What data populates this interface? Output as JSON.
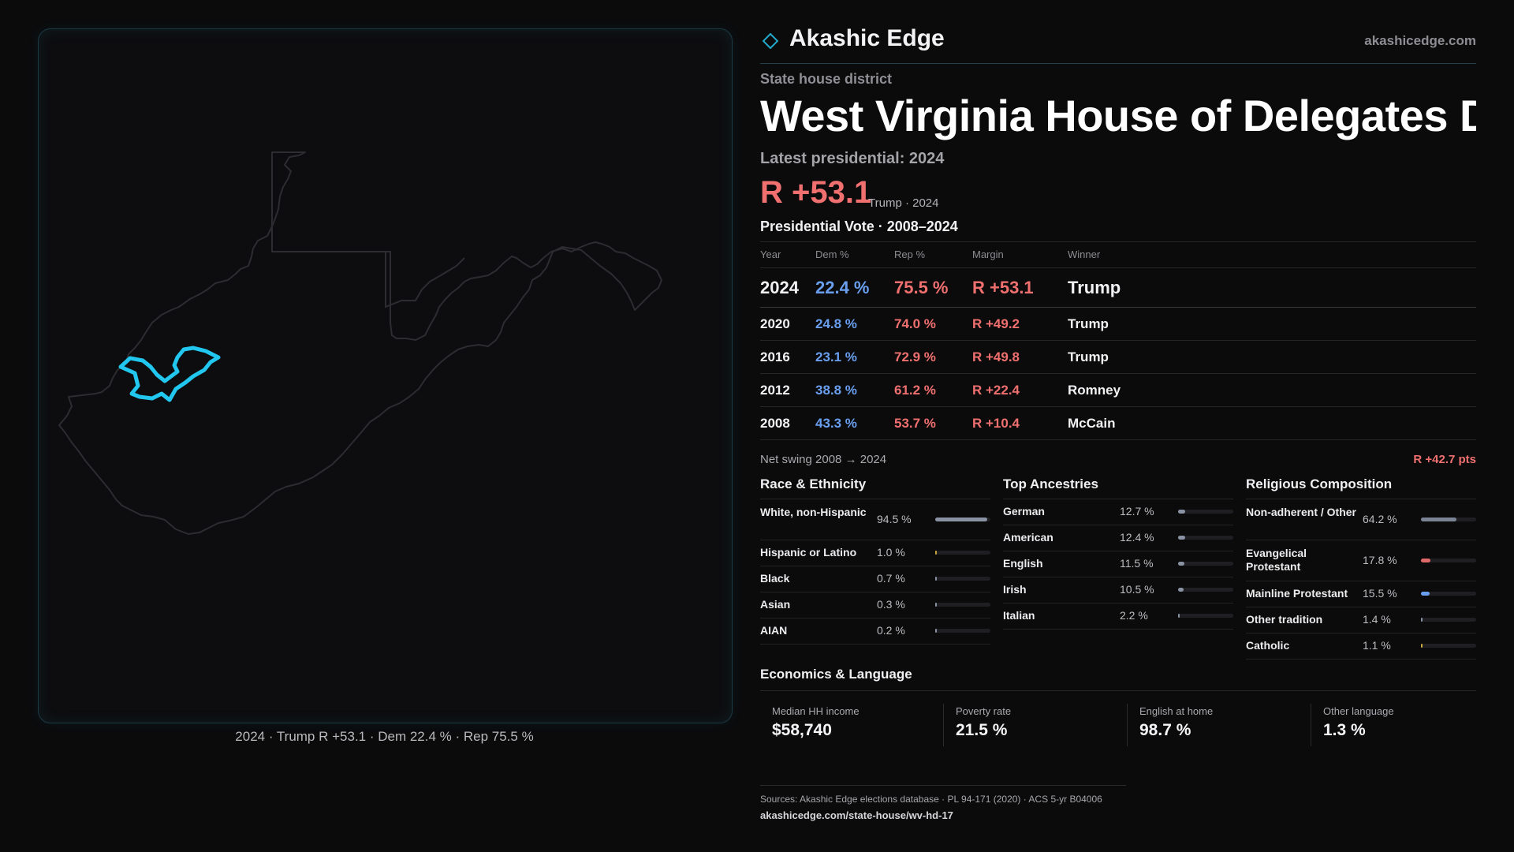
{
  "map": {
    "caption": "2024 · Trump R +53.1 · Dem 22.4 % · Rep 75.5 %"
  },
  "brand": {
    "icon": "diamond-icon",
    "name": "Akashic Edge",
    "url": "akashicedge.com"
  },
  "header": {
    "kicker": "State house district",
    "title": "West Virginia House of Delegates Distr",
    "latest_label": "Latest presidential: 2024",
    "margin": "R +53.1",
    "margin_sub": "Trump · 2024"
  },
  "vote_history": {
    "title": "Presidential Vote · 2008–2024",
    "columns": [
      "Year",
      "Dem %",
      "Rep %",
      "Margin",
      "Winner"
    ],
    "rows": [
      {
        "year": "2024",
        "dem": "22.4 %",
        "rep": "75.5 %",
        "margin": "R +53.1",
        "winner": "Trump"
      },
      {
        "year": "2020",
        "dem": "24.8 %",
        "rep": "74.0 %",
        "margin": "R +49.2",
        "winner": "Trump"
      },
      {
        "year": "2016",
        "dem": "23.1 %",
        "rep": "72.9 %",
        "margin": "R +49.8",
        "winner": "Trump"
      },
      {
        "year": "2012",
        "dem": "38.8 %",
        "rep": "61.2 %",
        "margin": "R +22.4",
        "winner": "Romney"
      },
      {
        "year": "2008",
        "dem": "43.3 %",
        "rep": "53.7 %",
        "margin": "R +10.4",
        "winner": "McCain"
      }
    ],
    "swing_label": "Net swing 2008 → 2024",
    "swing_value": "R +42.7 pts"
  },
  "race": {
    "title": "Race & Ethnicity",
    "items": [
      {
        "label": "White, non-Hispanic",
        "value": "94.5 %",
        "fraction": 0.945,
        "color": "#8a93a3"
      },
      {
        "label": "Hispanic or Latino",
        "value": "1.0 %",
        "fraction": 0.01,
        "color": "#c9a63a"
      },
      {
        "label": "Black",
        "value": "0.7 %",
        "fraction": 0.007,
        "color": "#8a93a3"
      },
      {
        "label": "Asian",
        "value": "0.3 %",
        "fraction": 0.003,
        "color": "#8a93a3"
      },
      {
        "label": "AIAN",
        "value": "0.2 %",
        "fraction": 0.002,
        "color": "#8a93a3"
      }
    ]
  },
  "ancestry": {
    "title": "Top Ancestries",
    "items": [
      {
        "label": "German",
        "value": "12.7 %",
        "fraction": 0.127,
        "color": "#8a93a3"
      },
      {
        "label": "American",
        "value": "12.4 %",
        "fraction": 0.124,
        "color": "#8a93a3"
      },
      {
        "label": "English",
        "value": "11.5 %",
        "fraction": 0.115,
        "color": "#8a93a3"
      },
      {
        "label": "Irish",
        "value": "10.5 %",
        "fraction": 0.105,
        "color": "#8a93a3"
      },
      {
        "label": "Italian",
        "value": "2.2 %",
        "fraction": 0.022,
        "color": "#8a93a3"
      }
    ]
  },
  "religion": {
    "title": "Religious Composition",
    "items": [
      {
        "label": "Non-adherent / Other",
        "value": "64.2 %",
        "fraction": 0.642,
        "color": "#7b8494"
      },
      {
        "label": "Evangelical Protestant",
        "value": "17.8 %",
        "fraction": 0.178,
        "color": "#e06868"
      },
      {
        "label": "Mainline Protestant",
        "value": "15.5 %",
        "fraction": 0.155,
        "color": "#6a9ff0"
      },
      {
        "label": "Other tradition",
        "value": "1.4 %",
        "fraction": 0.014,
        "color": "#8a93a3"
      },
      {
        "label": "Catholic",
        "value": "1.1 %",
        "fraction": 0.011,
        "color": "#c9a63a"
      }
    ]
  },
  "economics": {
    "title": "Economics & Language",
    "items": [
      {
        "label": "Median HH income",
        "value": "$58,740"
      },
      {
        "label": "Poverty rate",
        "value": "21.5 %"
      },
      {
        "label": "English at home",
        "value": "98.7 %"
      },
      {
        "label": "Other language",
        "value": "1.3 %"
      }
    ]
  },
  "footer": {
    "sources": "Sources: Akashic Edge elections database · PL 94-171 (2020) · ACS 5-yr B04006",
    "url": "akashicedge.com/state-house/wv-hd-17"
  },
  "colors": {
    "dem": "#6a9ff0",
    "rep": "#f07070",
    "district_outline": "#22c7ef",
    "state_outline": "#2c2c31"
  }
}
